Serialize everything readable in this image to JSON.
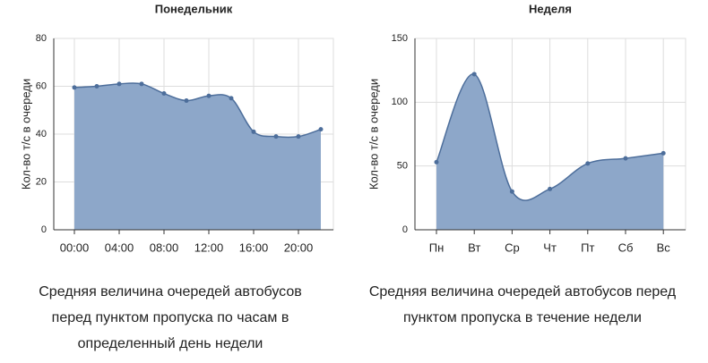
{
  "chart_data": [
    {
      "type": "area",
      "title": "Понедельник",
      "y_label": "Кол-во т/с в очереди",
      "categories": [
        "00:00",
        null,
        "04:00",
        null,
        "08:00",
        null,
        "12:00",
        null,
        "16:00",
        null,
        "20:00",
        null
      ],
      "values": [
        59.5,
        60,
        61,
        61,
        57,
        54,
        56,
        55,
        41,
        39,
        39,
        42
      ],
      "color": "#8da7c9",
      "line_color": "#4d6e9b",
      "ylim": [
        0,
        80
      ],
      "yticks": [
        0,
        20,
        40,
        60,
        80
      ],
      "grid": true,
      "caption": "Средняя величина очередей автобусов перед пунктом пропуска по часам в определенный день недели"
    },
    {
      "type": "area",
      "title": "Неделя",
      "y_label": "Кол-во т/с в очереди",
      "categories": [
        "Пн",
        "Вт",
        "Ср",
        "Чт",
        "Пт",
        "Сб",
        "Вс"
      ],
      "values": [
        53,
        122,
        30,
        32,
        52,
        56,
        60
      ],
      "color": "#8da7c9",
      "line_color": "#4d6e9b",
      "ylim": [
        0,
        150
      ],
      "yticks": [
        0,
        50,
        100,
        150
      ],
      "grid": true,
      "caption": "Средняя величина очередей автобусов перед пунктом пропуска в течение недели"
    }
  ]
}
